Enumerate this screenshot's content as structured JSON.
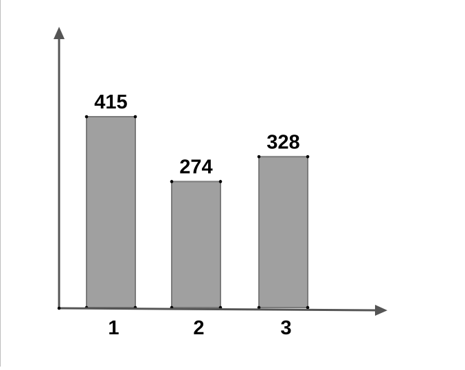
{
  "chart_data": {
    "type": "bar",
    "categories": [
      "1",
      "2",
      "3"
    ],
    "values": [
      415,
      274,
      328
    ],
    "title": "",
    "xlabel": "",
    "ylabel": "",
    "ylim": [
      0,
      606
    ],
    "grid": false,
    "legend": "none",
    "data_labels": true
  },
  "colors": {
    "bar_fill": "#a0a0a0",
    "bar_stroke": "#7a7a7a",
    "axis": "#555555",
    "vertex_dot": "#000000",
    "text": "#000000"
  }
}
